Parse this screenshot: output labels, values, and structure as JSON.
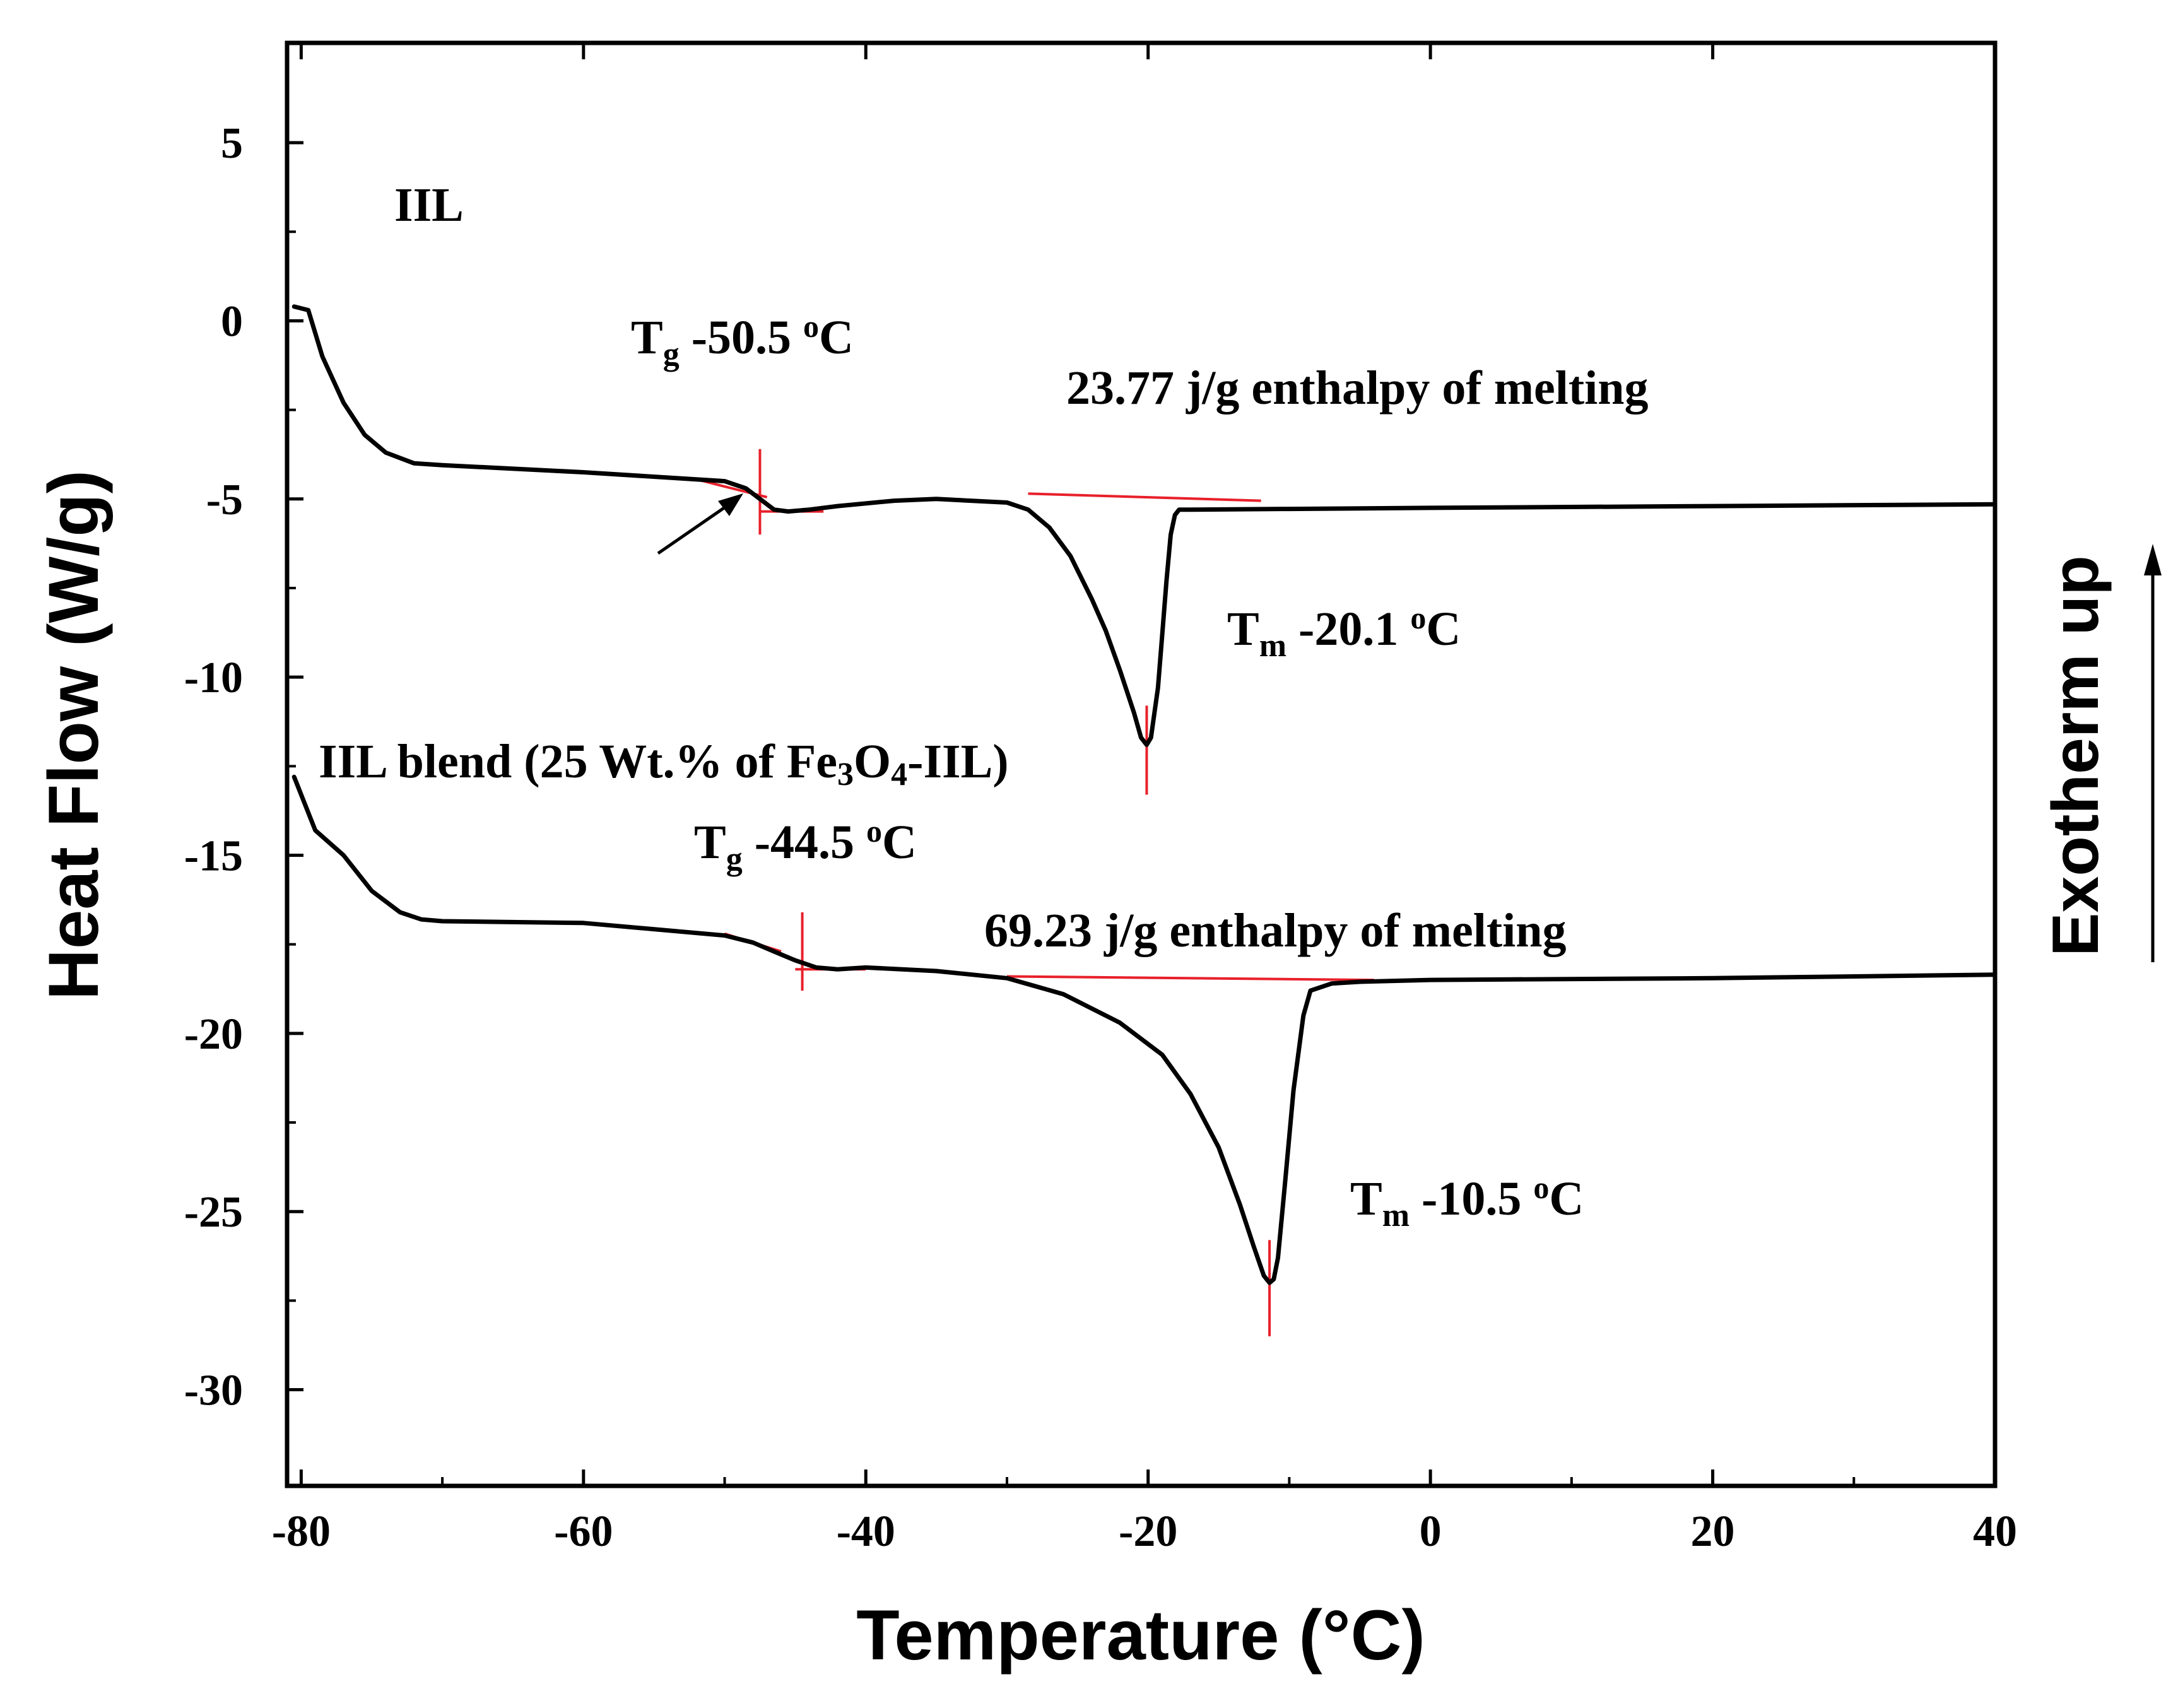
{
  "chart_data": {
    "type": "line",
    "xlabel": "Temperature (°C)",
    "ylabel": "Heat Flow (W/g)",
    "side_label": "Exotherm up",
    "xlim": [
      -81,
      40
    ],
    "ylim": [
      -32.7,
      7.8
    ],
    "x_ticks": [
      -80,
      -60,
      -40,
      -20,
      0,
      20,
      40
    ],
    "y_ticks": [
      5,
      0,
      -5,
      -10,
      -15,
      -20,
      -25,
      -30
    ],
    "x_tick_labels": [
      "-80",
      "-60",
      "-40",
      "-20",
      "0",
      "20",
      "40"
    ],
    "y_tick_labels": [
      "5",
      "0",
      "-5",
      "-10",
      "-15",
      "-20",
      "-25",
      "-30"
    ],
    "grid": false,
    "series": [
      {
        "name": "IIL",
        "x": [
          -80.5,
          -79.5,
          -78.5,
          -77,
          -75.5,
          -74,
          -72,
          -70,
          -60,
          -50,
          -48.5,
          -47.5,
          -46.5,
          -45.5,
          -44,
          -42,
          -38,
          -35,
          -30,
          -28.5,
          -27,
          -25.5,
          -24,
          -23,
          -22,
          -21,
          -20.5,
          -20.1,
          -19.8,
          -19.3,
          -19,
          -18.7,
          -18.4,
          -18.1,
          -17.8,
          -17.5,
          -17,
          -10,
          0,
          20,
          40
        ],
        "y": [
          0.4,
          0.3,
          -1.0,
          -2.3,
          -3.2,
          -3.7,
          -4.0,
          -4.05,
          -4.25,
          -4.5,
          -4.7,
          -5.0,
          -5.3,
          -5.35,
          -5.3,
          -5.2,
          -5.05,
          -5.0,
          -5.1,
          -5.3,
          -5.8,
          -6.6,
          -7.8,
          -8.7,
          -9.8,
          -11.0,
          -11.7,
          -11.9,
          -11.7,
          -10.3,
          -8.8,
          -7.3,
          -6.0,
          -5.45,
          -5.3,
          -5.3,
          -5.3,
          -5.28,
          -5.25,
          -5.2,
          -5.15
        ],
        "annotations": {
          "label": "IIL",
          "tg_label": "T",
          "tg_sub": "g",
          "tg_value": " -50.5 ",
          "tg_deg": "o",
          "tg_unit": "C",
          "enthalpy": "23.77 j/g enthalpy of melting",
          "tm_label": "T",
          "tm_sub": "m",
          "tm_value": " -20.1 ",
          "tm_deg": "o",
          "tm_unit": "C"
        }
      },
      {
        "name": "IIL blend (25 Wt.% of Fe3O4-IIL)",
        "x": [
          -80.5,
          -79,
          -77,
          -75,
          -73,
          -71.5,
          -70,
          -60,
          -50,
          -48,
          -46.5,
          -45,
          -43.5,
          -42,
          -40,
          -35,
          -30,
          -26,
          -22,
          -19,
          -17,
          -15,
          -13.5,
          -12.5,
          -11.8,
          -11.4,
          -11.1,
          -10.8,
          -10.3,
          -9.7,
          -9.0,
          -8.5,
          -7,
          -5,
          0,
          20,
          40
        ],
        "y": [
          -12.8,
          -14.3,
          -15.0,
          -16.0,
          -16.6,
          -16.8,
          -16.85,
          -16.9,
          -17.25,
          -17.45,
          -17.7,
          -17.95,
          -18.15,
          -18.2,
          -18.15,
          -18.25,
          -18.45,
          -18.9,
          -19.7,
          -20.6,
          -21.7,
          -23.2,
          -24.8,
          -26.0,
          -26.8,
          -27.0,
          -26.9,
          -26.3,
          -24.2,
          -21.6,
          -19.5,
          -18.8,
          -18.6,
          -18.55,
          -18.5,
          -18.45,
          -18.35
        ],
        "annotations": {
          "label_pre": "IIL blend (25 Wt.% of Fe",
          "label_sub1": "3",
          "label_mid": "O",
          "label_sub2": "4",
          "label_post": "-IIL)",
          "tg_label": "T",
          "tg_sub": "g",
          "tg_value": " -44.5 ",
          "tg_deg": "o",
          "tg_unit": "C",
          "enthalpy": "69.23 j/g enthalpy of melting",
          "tm_label": "T",
          "tm_sub": "m",
          "tm_value": " -10.5 ",
          "tm_deg": "o",
          "tm_unit": "C"
        }
      }
    ]
  },
  "colors": {
    "line": "#000000",
    "marker": "#e8202a"
  }
}
